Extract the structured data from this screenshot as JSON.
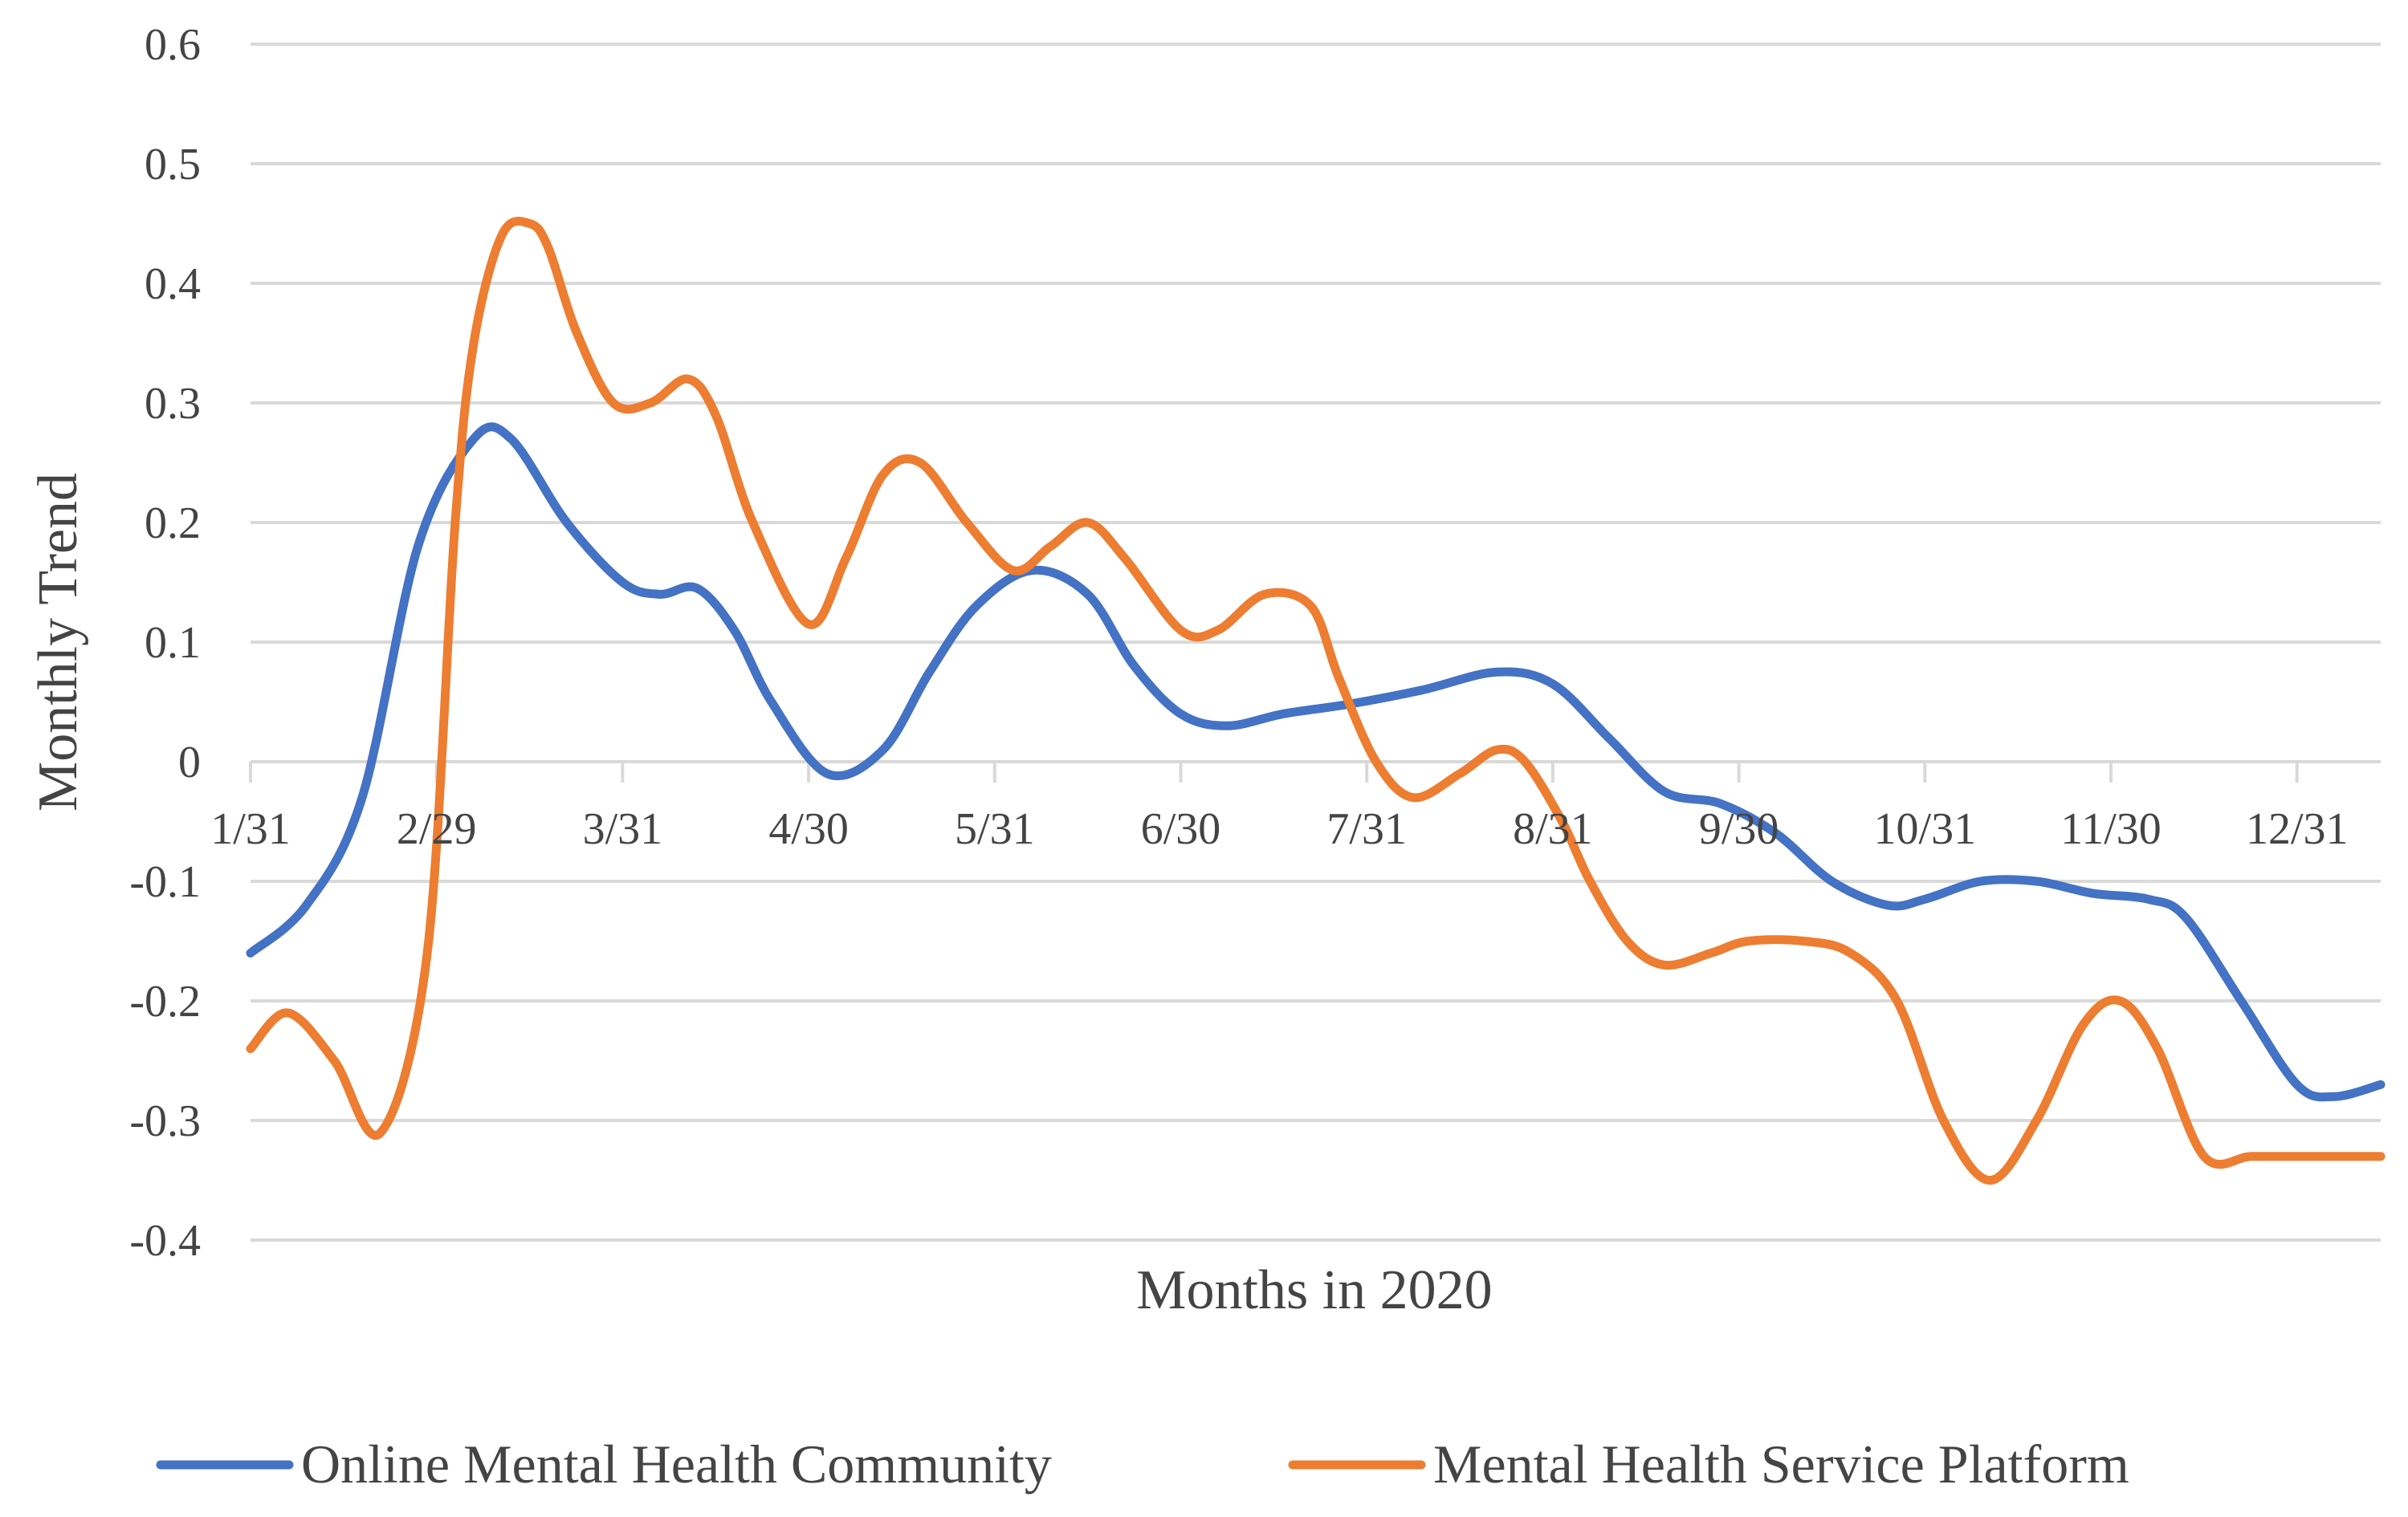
{
  "chart_data": {
    "type": "line",
    "title": "",
    "xlabel": "Months in 2020",
    "ylabel": "Monthly Trend",
    "ylim": [
      -0.4,
      0.6
    ],
    "yticks": [
      0.6,
      0.5,
      0.4,
      0.3,
      0.2,
      0.1,
      0,
      -0.1,
      -0.2,
      -0.3,
      -0.4
    ],
    "ytick_labels": [
      "0.6",
      "0.5",
      "0.4",
      "0.3",
      "0.2",
      "0.1",
      "0",
      "-0.1",
      "-0.2",
      "-0.3",
      "-0.4"
    ],
    "x_categories": [
      "1/31",
      "2/29",
      "3/31",
      "4/30",
      "5/31",
      "6/30",
      "7/31",
      "8/31",
      "9/30",
      "10/31",
      "11/30",
      "12/31"
    ],
    "xlim": [
      0,
      11.45
    ],
    "grid": true,
    "legend_position": "bottom",
    "series": [
      {
        "name": "Online Mental Health Community",
        "color": "#4472c4",
        "x": [
          0,
          0.3,
          0.6,
          0.9,
          1.2,
          1.4,
          1.7,
          2.0,
          2.2,
          2.4,
          2.6,
          2.8,
          3.1,
          3.4,
          3.65,
          3.9,
          4.2,
          4.5,
          4.75,
          5.0,
          5.25,
          5.55,
          5.9,
          6.3,
          6.7,
          7.0,
          7.3,
          7.6,
          7.9,
          8.2,
          8.5,
          8.8,
          9.0,
          9.3,
          9.6,
          9.9,
          10.2,
          10.4,
          10.7,
          11.0,
          11.2,
          11.45
        ],
        "values": [
          -0.16,
          -0.12,
          -0.03,
          0.18,
          0.27,
          0.27,
          0.2,
          0.15,
          0.14,
          0.145,
          0.11,
          0.05,
          -0.01,
          0.01,
          0.075,
          0.13,
          0.16,
          0.14,
          0.08,
          0.04,
          0.03,
          0.04,
          0.048,
          0.06,
          0.075,
          0.065,
          0.02,
          -0.025,
          -0.035,
          -0.06,
          -0.1,
          -0.12,
          -0.115,
          -0.1,
          -0.1,
          -0.11,
          -0.115,
          -0.13,
          -0.2,
          -0.27,
          -0.28,
          -0.27
        ]
      },
      {
        "name": "Mental Health Service Platform",
        "color": "#ed7d31",
        "x": [
          0,
          0.2,
          0.45,
          0.7,
          0.95,
          1.1,
          1.2,
          1.35,
          1.5,
          1.6,
          1.75,
          1.95,
          2.15,
          2.35,
          2.5,
          2.7,
          3.0,
          3.2,
          3.4,
          3.6,
          3.85,
          4.1,
          4.3,
          4.5,
          4.7,
          5.0,
          5.2,
          5.45,
          5.7,
          5.85,
          6.05,
          6.25,
          6.5,
          6.7,
          6.85,
          7.05,
          7.2,
          7.4,
          7.6,
          7.85,
          8.05,
          8.35,
          8.6,
          8.85,
          9.1,
          9.35,
          9.6,
          9.85,
          10.05,
          10.25,
          10.5,
          10.75,
          10.95,
          11.2,
          11.45
        ],
        "values": [
          -0.24,
          -0.21,
          -0.25,
          -0.31,
          -0.16,
          0.2,
          0.35,
          0.44,
          0.45,
          0.43,
          0.36,
          0.3,
          0.3,
          0.32,
          0.29,
          0.2,
          0.115,
          0.17,
          0.24,
          0.25,
          0.2,
          0.16,
          0.18,
          0.2,
          0.17,
          0.11,
          0.11,
          0.14,
          0.13,
          0.07,
          0.0,
          -0.03,
          -0.01,
          0.01,
          0.0,
          -0.05,
          -0.1,
          -0.15,
          -0.17,
          -0.16,
          -0.15,
          -0.15,
          -0.16,
          -0.2,
          -0.3,
          -0.35,
          -0.3,
          -0.22,
          -0.2,
          -0.24,
          -0.33,
          -0.33,
          -0.33,
          -0.33,
          -0.33
        ]
      }
    ]
  }
}
